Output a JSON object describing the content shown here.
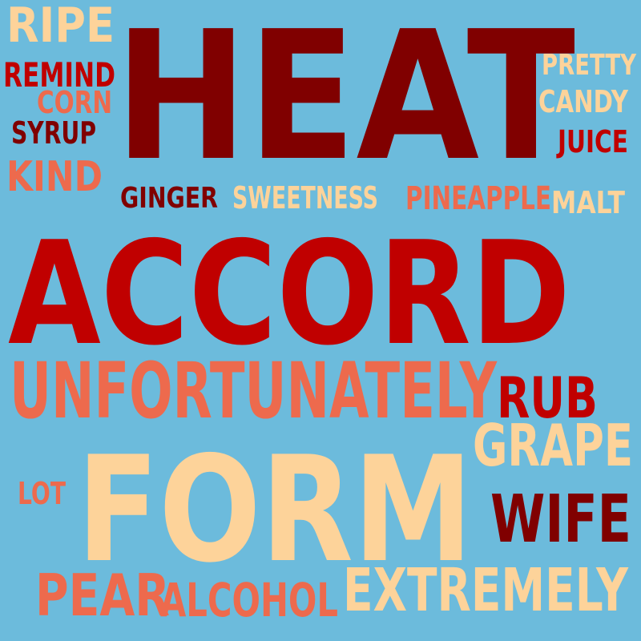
{
  "background": "#6cbbdc",
  "palette": {
    "dark_red": "#800000",
    "red": "#c00000",
    "salmon": "#ed6a4d",
    "peach": "#fdd39a"
  },
  "words": [
    {
      "text": "HEAT",
      "color": "#800000"
    },
    {
      "text": "ACCORD",
      "color": "#c00000"
    },
    {
      "text": "FORM",
      "color": "#fdd39a"
    },
    {
      "text": "UNFORTUNATELY",
      "color": "#ed6a4d"
    },
    {
      "text": "RUB",
      "color": "#c00000"
    },
    {
      "text": "GRAPE",
      "color": "#fdd39a"
    },
    {
      "text": "WIFE",
      "color": "#800000"
    },
    {
      "text": "EXTREMELY",
      "color": "#fdd39a"
    },
    {
      "text": "ALCOHOL",
      "color": "#ed6a4d"
    },
    {
      "text": "PEAR",
      "color": "#ed6a4d"
    },
    {
      "text": "LOT",
      "color": "#ed6a4d"
    },
    {
      "text": "RIPE",
      "color": "#fdd39a"
    },
    {
      "text": "REMIND",
      "color": "#c00000"
    },
    {
      "text": "CORN",
      "color": "#ed6a4d"
    },
    {
      "text": "SYRUP",
      "color": "#800000"
    },
    {
      "text": "KIND",
      "color": "#ed6a4d"
    },
    {
      "text": "PRETTY",
      "color": "#fdd39a"
    },
    {
      "text": "CANDY",
      "color": "#fdd39a"
    },
    {
      "text": "JUICE",
      "color": "#c00000"
    },
    {
      "text": "GINGER",
      "color": "#800000"
    },
    {
      "text": "SWEETNESS",
      "color": "#fdd39a"
    },
    {
      "text": "PINEAPPLE",
      "color": "#ed6a4d"
    },
    {
      "text": "MALT",
      "color": "#fdd39a"
    }
  ]
}
